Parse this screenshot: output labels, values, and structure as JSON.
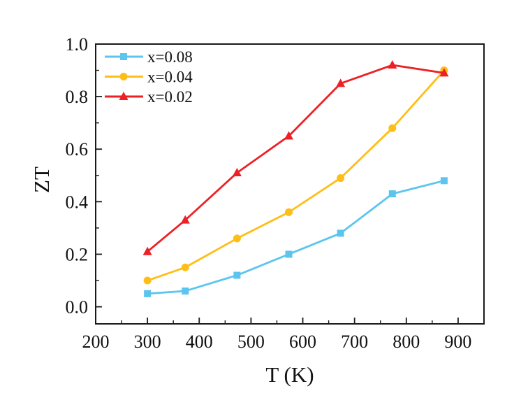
{
  "figure": {
    "background": "#ffffff",
    "frame_color": "#1a1a1a",
    "text_color": "#111111"
  },
  "chart_data": {
    "type": "line",
    "title": "",
    "xlabel": "T (K)",
    "ylabel": "ZT",
    "xlim": [
      200,
      950
    ],
    "ylim": [
      -0.065,
      1.0
    ],
    "grid": false,
    "legend_position": "top-left",
    "x_major_ticks": [
      200,
      300,
      400,
      500,
      600,
      700,
      800,
      900
    ],
    "x_tick_labels": [
      "200",
      "300",
      "400",
      "500",
      "600",
      "700",
      "800",
      "900"
    ],
    "x_minor_ticks": [
      250,
      350,
      450,
      550,
      650,
      750,
      850
    ],
    "y_major_ticks": [
      0.0,
      0.2,
      0.4,
      0.6,
      0.8,
      1.0
    ],
    "y_tick_labels": [
      "0.0",
      "0.2",
      "0.4",
      "0.6",
      "0.8",
      "1.0"
    ],
    "y_minor_ticks": [
      0.1,
      0.3,
      0.5,
      0.7,
      0.9
    ],
    "x": [
      300,
      373,
      473,
      573,
      673,
      773,
      873
    ],
    "series": [
      {
        "name": "x=0.08",
        "marker": "square",
        "color": "#5BC5F0",
        "values": [
          0.05,
          0.06,
          0.12,
          0.2,
          0.28,
          0.43,
          0.48
        ]
      },
      {
        "name": "x=0.04",
        "marker": "circle",
        "color": "#FFBE17",
        "values": [
          0.1,
          0.15,
          0.26,
          0.36,
          0.49,
          0.68,
          0.9
        ]
      },
      {
        "name": "x=0.02",
        "marker": "triangle",
        "color": "#ED2024",
        "values": [
          0.21,
          0.33,
          0.51,
          0.65,
          0.85,
          0.92,
          0.89
        ]
      }
    ]
  }
}
